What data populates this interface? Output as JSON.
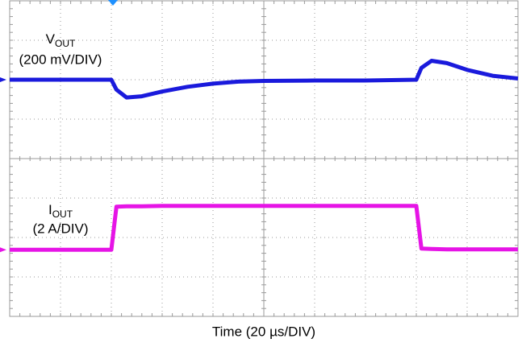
{
  "chart_data": {
    "type": "line",
    "x_label": "Time (20 µs/DIV)",
    "xlim": [
      0,
      10
    ],
    "ylim": [
      0,
      8
    ],
    "xticks": [
      0,
      1,
      2,
      3,
      4,
      5,
      6,
      7,
      8,
      9,
      10
    ],
    "yticks": [
      0,
      1,
      2,
      3,
      4,
      5,
      6,
      7,
      8
    ],
    "grid": true,
    "x": [
      0,
      2.0,
      2.1,
      2.3,
      2.6,
      3,
      3.5,
      4,
      4.5,
      5,
      6,
      7,
      8.0,
      8.1,
      8.3,
      8.6,
      9,
      9.5,
      10
    ],
    "series": [
      {
        "name": "V",
        "subscript": "OUT",
        "scale": "(200 mV/DIV)",
        "color": "#1a1adc",
        "values": [
          6.0,
          6.0,
          5.75,
          5.55,
          5.58,
          5.7,
          5.82,
          5.9,
          5.95,
          5.97,
          5.98,
          5.98,
          6.0,
          6.3,
          6.48,
          6.42,
          6.25,
          6.1,
          6.03
        ]
      },
      {
        "name": "I",
        "subscript": "OUT",
        "scale": "(2 A/DIV)",
        "color": "#e614e6",
        "values": [
          1.69,
          1.69,
          2.78,
          2.79,
          2.79,
          2.8,
          2.8,
          2.8,
          2.8,
          2.8,
          2.8,
          2.8,
          2.8,
          1.72,
          1.71,
          1.7,
          1.7,
          1.7,
          1.7
        ]
      }
    ]
  }
}
